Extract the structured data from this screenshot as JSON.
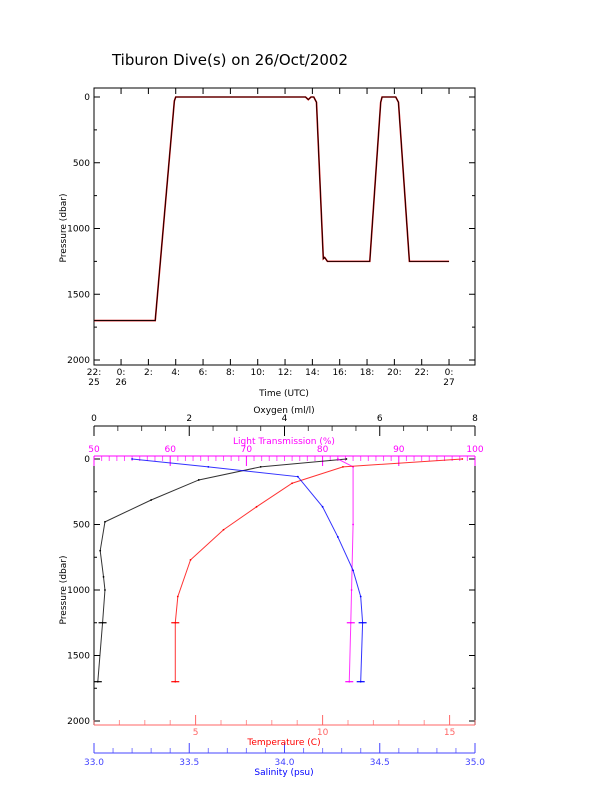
{
  "title": "Tiburon Dive(s) on 26/Oct/2002",
  "colors": {
    "oxygen": "#000000",
    "light": "#ff00ff",
    "temperature": "#ff0000",
    "salinity": "#0000ff",
    "axis": "#000000"
  },
  "chart_data": [
    {
      "type": "line",
      "xlabel": "Time (UTC)",
      "ylabel": "Pressure (dbar)",
      "xlim": [
        -1.98,
        25.9
      ],
      "ylim": [
        2000,
        0
      ],
      "xticks": [
        {
          "v": -1.98,
          "l1": "22:",
          "l2": "25"
        },
        {
          "v": 0,
          "l1": "0:",
          "l2": "26"
        },
        {
          "v": 2,
          "l1": "2:",
          "l2": ""
        },
        {
          "v": 4,
          "l1": "4:",
          "l2": ""
        },
        {
          "v": 6,
          "l1": "6:",
          "l2": ""
        },
        {
          "v": 8,
          "l1": "8:",
          "l2": ""
        },
        {
          "v": 10,
          "l1": "10:",
          "l2": ""
        },
        {
          "v": 12,
          "l1": "12:",
          "l2": ""
        },
        {
          "v": 14,
          "l1": "14:",
          "l2": ""
        },
        {
          "v": 16,
          "l1": "16:",
          "l2": ""
        },
        {
          "v": 18,
          "l1": "18:",
          "l2": ""
        },
        {
          "v": 20,
          "l1": "20:",
          "l2": ""
        },
        {
          "v": 22,
          "l1": "22:",
          "l2": ""
        },
        {
          "v": 24,
          "l1": "0:",
          "l2": "27"
        }
      ],
      "yticks": [
        "0",
        "500",
        "1000",
        "1500",
        "2000"
      ],
      "series": [
        {
          "name": "Pressure",
          "x": [
            -1.98,
            2.5,
            3.9,
            4.0,
            13.5,
            13.7,
            13.9,
            14.1,
            14.3,
            14.8,
            14.9,
            15.1,
            18.2,
            19.0,
            19.1,
            20.1,
            20.3,
            21.1,
            24.0
          ],
          "y": [
            1700,
            1700,
            30,
            0,
            0,
            20,
            0,
            0,
            40,
            1230,
            1220,
            1250,
            1250,
            40,
            0,
            0,
            40,
            1250,
            1250
          ]
        }
      ]
    },
    {
      "type": "line",
      "ylabel": "Pressure (dbar)",
      "ylim": [
        2000,
        0
      ],
      "yticks": [
        "0",
        "500",
        "1000",
        "1500",
        "2000"
      ],
      "axes": {
        "oxygen": {
          "label": "Oxygen (ml/l)",
          "lim": [
            0,
            8
          ],
          "ticks": [
            "0",
            "2",
            "4",
            "6",
            "8"
          ],
          "minor": 0.5
        },
        "light": {
          "label": "Light Transmission (%)",
          "lim": [
            50,
            100
          ],
          "ticks": [
            "50",
            "60",
            "70",
            "80",
            "90",
            "100"
          ],
          "minor": 1
        },
        "temperature": {
          "label": "Temperature (C)",
          "lim": [
            1,
            16
          ],
          "ticks": [
            "5",
            "10",
            "15"
          ],
          "minor": 1
        },
        "salinity": {
          "label": "Salinity (psu)",
          "lim": [
            33.0,
            35.0
          ],
          "ticks": [
            "33.0",
            "33.5",
            "34.0",
            "34.5",
            "35.0"
          ],
          "minor": 0.1
        }
      },
      "series": [
        {
          "name": "Oxygen",
          "axis": "oxygen",
          "x": [
            5.3,
            3.5,
            2.2,
            1.2,
            0.23,
            0.13,
            0.2,
            0.23,
            0.18,
            0.08
          ],
          "y": [
            0,
            60,
            160,
            313,
            480,
            700,
            900,
            1000,
            1250,
            1700
          ]
        },
        {
          "name": "Light Transmission",
          "axis": "light",
          "x": [
            82,
            84,
            84,
            83.8,
            83.7,
            83.5
          ],
          "y": [
            0,
            60,
            500,
            1000,
            1250,
            1700
          ]
        },
        {
          "name": "Temperature",
          "axis": "temperature",
          "x": [
            15.5,
            10.8,
            8.8,
            7.4,
            6.1,
            4.8,
            4.3,
            4.2,
            4.2
          ],
          "y": [
            0,
            60,
            185,
            365,
            540,
            770,
            1050,
            1250,
            1700
          ]
        },
        {
          "name": "Salinity",
          "axis": "salinity",
          "x": [
            33.2,
            33.6,
            34.07,
            34.2,
            34.28,
            34.36,
            34.4,
            34.41,
            34.4
          ],
          "y": [
            0,
            60,
            135,
            365,
            595,
            850,
            1050,
            1250,
            1700
          ]
        }
      ]
    }
  ]
}
